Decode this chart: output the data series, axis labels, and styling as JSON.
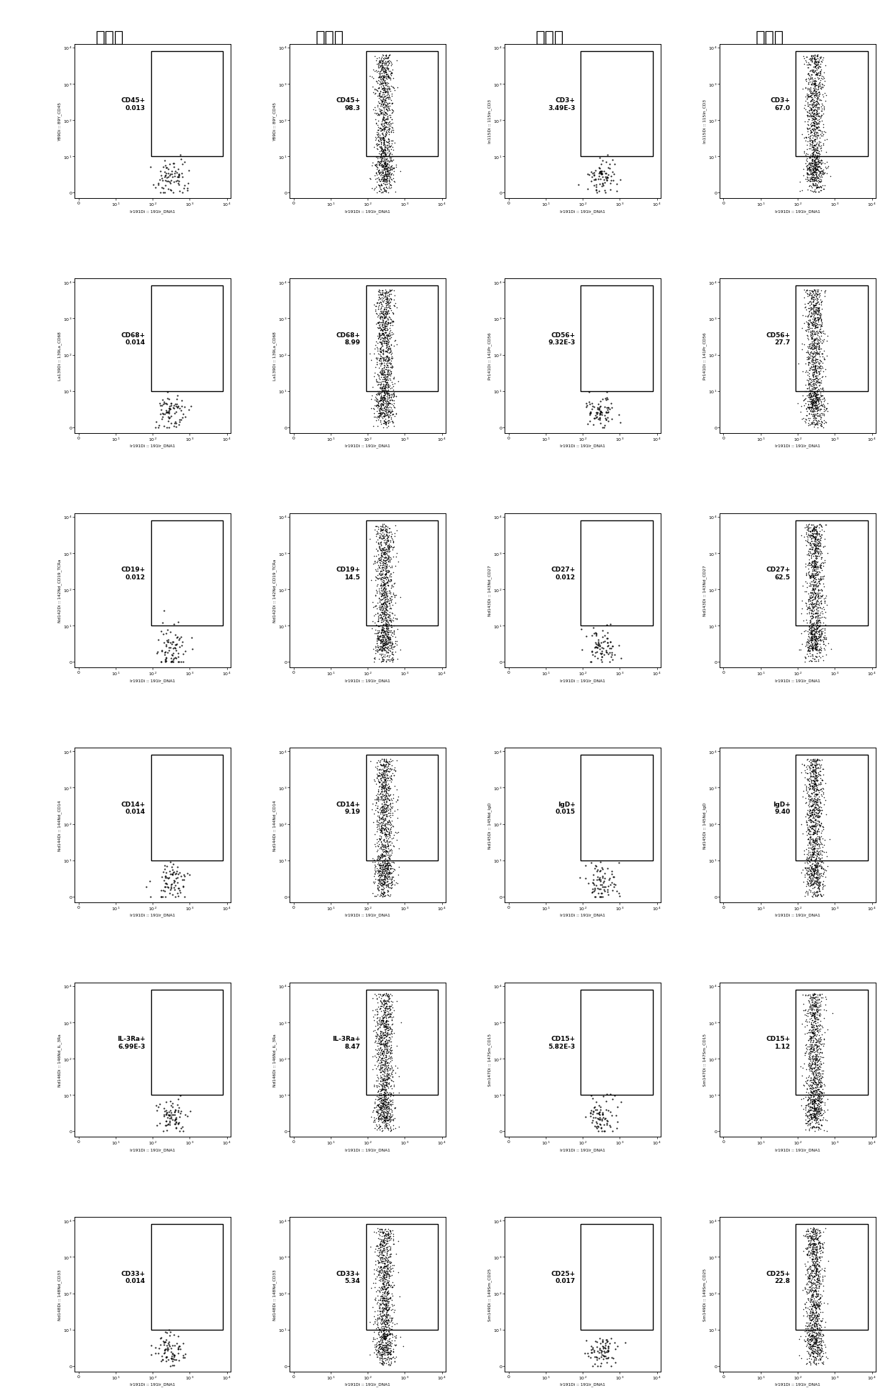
{
  "col_headers": [
    "对照组",
    "实验组",
    "对照组",
    "实验组"
  ],
  "panels": [
    {
      "marker": "CD45+",
      "value": "0.013",
      "ylabel": "Y89Di :: 89Y_CD45",
      "xlabel": "Ir191Di :: 191Ir_DNA1",
      "dense": false
    },
    {
      "marker": "CD45+",
      "value": "98.3",
      "ylabel": "Y89Di :: 89Y_CD45",
      "xlabel": "Ir191Di :: 191Ir_DNA1",
      "dense": true
    },
    {
      "marker": "CD3+",
      "value": "3.49E-3",
      "ylabel": "In115Di :: 115In_CD3",
      "xlabel": "Ir191Di :: 191Ir_DNA1",
      "dense": false
    },
    {
      "marker": "CD3+",
      "value": "67.0",
      "ylabel": "In115Di :: 115In_CD3",
      "xlabel": "Ir191Di :: 191Ir_DNA1",
      "dense": true
    },
    {
      "marker": "CD68+",
      "value": "0.014",
      "ylabel": "La139Di :: 139La_CD68",
      "xlabel": "Ir191Di :: 191Ir_DNA1",
      "dense": false
    },
    {
      "marker": "CD68+",
      "value": "8.99",
      "ylabel": "La139Di :: 139La_CD68",
      "xlabel": "Ir191Di :: 191Ir_DNA1",
      "dense": true
    },
    {
      "marker": "CD56+",
      "value": "9.32E-3",
      "ylabel": "Pr141Di :: 141Pr_CD56",
      "xlabel": "Ir191Di :: 191Ir_DNA1",
      "dense": false
    },
    {
      "marker": "CD56+",
      "value": "27.7",
      "ylabel": "Pr141Di :: 141Pr_CD56",
      "xlabel": "Ir191Di :: 191Ir_DNA1",
      "dense": true
    },
    {
      "marker": "CD19+",
      "value": "0.012",
      "ylabel": "Nd142Di :: 142Nd_CD19_TCRa",
      "xlabel": "Ir191Di :: 191Ir_DNA1",
      "dense": false
    },
    {
      "marker": "CD19+",
      "value": "14.5",
      "ylabel": "Nd142Di :: 142Nd_CD19_TCRa",
      "xlabel": "Ir191Di :: 191Ir_DNA1",
      "dense": true
    },
    {
      "marker": "CD27+",
      "value": "0.012",
      "ylabel": "Nd143Di :: 143Nd_CD27",
      "xlabel": "Ir191Di :: 191Ir_DNA1",
      "dense": false
    },
    {
      "marker": "CD27+",
      "value": "62.5",
      "ylabel": "Nd143Di :: 143Nd_CD27",
      "xlabel": "Ir191Di :: 191Ir_DNA1",
      "dense": true
    },
    {
      "marker": "CD14+",
      "value": "0.014",
      "ylabel": "Nd144Di :: 144Nd_CD14",
      "xlabel": "Ir191Di :: 191Ir_DNA1",
      "dense": false
    },
    {
      "marker": "CD14+",
      "value": "9.19",
      "ylabel": "Nd144Di :: 144Nd_CD14",
      "xlabel": "Ir191Di :: 191Ir_DNA1",
      "dense": true
    },
    {
      "marker": "IgD+",
      "value": "0.015",
      "ylabel": "Nd145Di :: 145Nd_IgD",
      "xlabel": "Ir191Di :: 191Ir_DNA1",
      "dense": false
    },
    {
      "marker": "IgD+",
      "value": "9.40",
      "ylabel": "Nd145Di :: 145Nd_IgD",
      "xlabel": "Ir191Di :: 191Ir_DNA1",
      "dense": true
    },
    {
      "marker": "IL-3Ra+",
      "value": "6.99E-3",
      "ylabel": "Nd146Di :: 146Nd_IL_3Ra",
      "xlabel": "Ir191Di :: 191Ir_DNA1",
      "dense": false
    },
    {
      "marker": "IL-3Ra+",
      "value": "8.47",
      "ylabel": "Nd146Di :: 146Nd_IL_3Ra",
      "xlabel": "Ir191Di :: 191Ir_DNA1",
      "dense": true
    },
    {
      "marker": "CD15+",
      "value": "5.82E-3",
      "ylabel": "Sm147Di :: 147Sm_CD15",
      "xlabel": "Ir191Di :: 191Ir_DNA1",
      "dense": false
    },
    {
      "marker": "CD15+",
      "value": "1.12",
      "ylabel": "Sm147Di :: 147Sm_CD15",
      "xlabel": "Ir191Di :: 191Ir_DNA1",
      "dense": true
    },
    {
      "marker": "CD33+",
      "value": "0.014",
      "ylabel": "Nd148Di :: 148Nd_CD33",
      "xlabel": "Ir191Di :: 191Ir_DNA1",
      "dense": false
    },
    {
      "marker": "CD33+",
      "value": "5.34",
      "ylabel": "Nd148Di :: 148Nd_CD33",
      "xlabel": "Ir191Di :: 191Ir_DNA1",
      "dense": true
    },
    {
      "marker": "CD25+",
      "value": "0.017",
      "ylabel": "Sm149Di :: 149Sm_CD25",
      "xlabel": "Ir191Di :: 191Ir_DNA1",
      "dense": false
    },
    {
      "marker": "CD25+",
      "value": "22.8",
      "ylabel": "Sm149Di :: 149Sm_CD25",
      "xlabel": "Ir191Di :: 191Ir_DNA1",
      "dense": true
    }
  ],
  "bg_color": "#ffffff",
  "dot_color": "#000000",
  "gate_color": "#000000",
  "header_fontsize": 16,
  "axis_fontsize": 5,
  "marker_fontsize": 6.5
}
